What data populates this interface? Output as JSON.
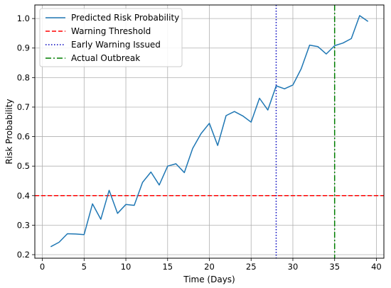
{
  "chart_data": {
    "type": "line",
    "xlabel": "Time (Days)",
    "ylabel": "Risk Probability",
    "xlim": [
      -0.9,
      40.9
    ],
    "ylim": [
      0.188,
      1.046
    ],
    "xticks": [
      0,
      5,
      10,
      15,
      20,
      25,
      30,
      35,
      40
    ],
    "yticks": [
      0.2,
      0.3,
      0.4,
      0.5,
      0.6,
      0.7,
      0.8,
      0.9,
      1.0
    ],
    "xtick_labels": [
      "0",
      "5",
      "10",
      "15",
      "20",
      "25",
      "30",
      "35",
      "40"
    ],
    "ytick_labels": [
      "0.2",
      "0.3",
      "0.4",
      "0.5",
      "0.6",
      "0.7",
      "0.8",
      "0.9",
      "1.0"
    ],
    "grid": true,
    "legend_position": "top-left",
    "series": [
      {
        "name": "Predicted Risk Probability",
        "color": "#1f77b4",
        "x": [
          1,
          2,
          3,
          4,
          5,
          6,
          7,
          8,
          9,
          10,
          11,
          12,
          13,
          14,
          15,
          16,
          17,
          18,
          19,
          20,
          21,
          22,
          23,
          24,
          25,
          26,
          27,
          28,
          29,
          30,
          31,
          32,
          33,
          34,
          35,
          36,
          37,
          38,
          39
        ],
        "y": [
          0.227,
          0.242,
          0.271,
          0.27,
          0.268,
          0.372,
          0.32,
          0.418,
          0.34,
          0.37,
          0.367,
          0.445,
          0.48,
          0.436,
          0.5,
          0.508,
          0.478,
          0.56,
          0.61,
          0.645,
          0.57,
          0.671,
          0.685,
          0.67,
          0.649,
          0.73,
          0.69,
          0.772,
          0.762,
          0.775,
          0.83,
          0.91,
          0.905,
          0.88,
          0.908,
          0.917,
          0.932,
          1.01,
          0.99
        ]
      }
    ],
    "reference_lines": [
      {
        "name": "Warning Threshold",
        "orientation": "horizontal",
        "value": 0.4,
        "color": "#ff0000",
        "style": "dashed"
      },
      {
        "name": "Early Warning Issued",
        "orientation": "vertical",
        "value": 28,
        "color": "#0000bf",
        "style": "dotted"
      },
      {
        "name": "Actual Outbreak",
        "orientation": "vertical",
        "value": 35,
        "color": "#007f00",
        "style": "dashdot"
      }
    ]
  }
}
